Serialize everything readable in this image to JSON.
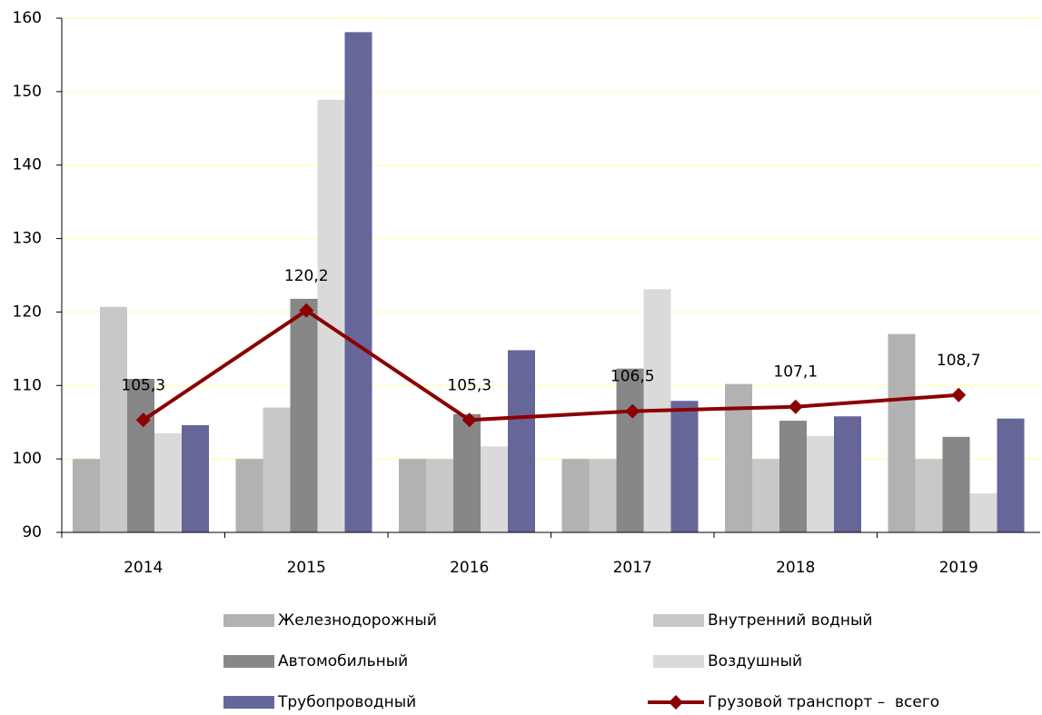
{
  "chart_data": {
    "type": "bar",
    "categories": [
      "2014",
      "2015",
      "2016",
      "2017",
      "2018",
      "2019"
    ],
    "series": [
      {
        "name": "Железнодорожный",
        "color": "#b2b2b2",
        "values": [
          100,
          100,
          100,
          100,
          110.2,
          117
        ]
      },
      {
        "name": "Внутренний водный",
        "color": "#c8c8c8",
        "values": [
          120.7,
          107,
          100,
          100,
          100,
          100
        ]
      },
      {
        "name": "Автомобильный",
        "color": "#878787",
        "values": [
          110.9,
          121.8,
          106.1,
          112.3,
          105.2,
          103
        ]
      },
      {
        "name": "Воздушный",
        "color": "#dadada",
        "values": [
          103.5,
          148.9,
          101.7,
          123.1,
          103.1,
          95.3
        ]
      },
      {
        "name": "Трубопроводный",
        "color": "#666699",
        "values": [
          104.6,
          158.1,
          114.8,
          107.9,
          105.8,
          105.5
        ]
      }
    ],
    "line": {
      "name": "Грузовой транспорт –  всего",
      "color": "#8b0000",
      "values": [
        105.3,
        120.2,
        105.3,
        106.5,
        107.1,
        108.7
      ],
      "value_labels": [
        "105,3",
        "120,2",
        "105,3",
        "106,5",
        "107,1",
        "108,7"
      ]
    },
    "ylim": [
      90,
      160
    ],
    "yticks": [
      90,
      100,
      110,
      120,
      130,
      140,
      150,
      160
    ],
    "grid": true
  }
}
